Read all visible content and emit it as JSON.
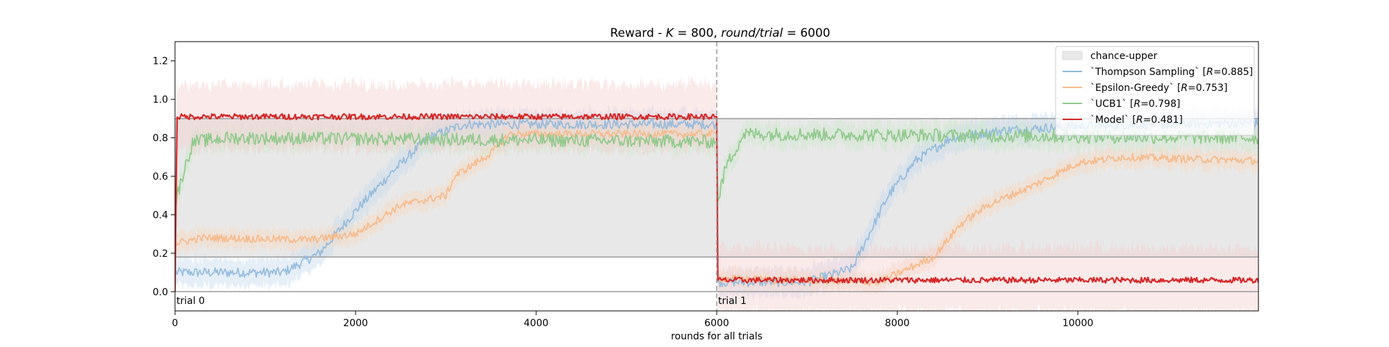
{
  "chart_data": {
    "type": "line",
    "title": "Reward - K = 800, round/trial = 6000",
    "title_parts": {
      "prefix": "Reward - ",
      "k_var": "K",
      "k_value": " = 800, ",
      "r_var": "round/trial",
      "r_value": " = 6000"
    },
    "xlabel": "rounds for all trials",
    "ylabel": "",
    "xlim": [
      0,
      12000
    ],
    "ylim": [
      -0.1,
      1.3
    ],
    "xticks": [
      0,
      2000,
      4000,
      6000,
      8000,
      10000
    ],
    "xtick_labels": [
      "0",
      "2000",
      "4000",
      "6000",
      "8000",
      "10000"
    ],
    "yticks": [
      0.0,
      0.2,
      0.4,
      0.6,
      0.8,
      1.0,
      1.2
    ],
    "ytick_labels": [
      "0.0",
      "0.2",
      "0.4",
      "0.6",
      "0.8",
      "1.0",
      "1.2"
    ],
    "grid": false,
    "legend_position": "top-right",
    "trial_boundary": 6000,
    "trial_labels": [
      {
        "x": 0,
        "text": "trial 0"
      },
      {
        "x": 6000,
        "text": "trial 1"
      }
    ],
    "chance_band": {
      "name": "chance-upper",
      "color": "#e8e8e8",
      "segments": [
        {
          "x0": 0,
          "x1": 6000,
          "lower": 0.18,
          "upper": 0.9
        },
        {
          "x0": 6000,
          "x1": 12000,
          "lower": 0.18,
          "upper": 0.9
        }
      ]
    },
    "zero_line": 0.0,
    "series": [
      {
        "name": "`Thompson Sampling` [R=0.885]",
        "legend_main": "`Thompson Sampling` [",
        "legend_var": "R",
        "legend_value": "=0.885]",
        "color": "#8fb8db",
        "band_color": "#c7dcee",
        "opacity": 0.9,
        "band_width": 0.07,
        "noise": 0.025,
        "points": [
          [
            0,
            0.1
          ],
          [
            1200,
            0.1
          ],
          [
            1600,
            0.2
          ],
          [
            2000,
            0.42
          ],
          [
            2400,
            0.62
          ],
          [
            2800,
            0.8
          ],
          [
            3200,
            0.87
          ],
          [
            3600,
            0.87
          ],
          [
            4000,
            0.87
          ],
          [
            5000,
            0.87
          ],
          [
            6000,
            0.87
          ],
          [
            6001,
            0.05
          ],
          [
            7000,
            0.05
          ],
          [
            7500,
            0.12
          ],
          [
            7900,
            0.5
          ],
          [
            8200,
            0.68
          ],
          [
            8600,
            0.8
          ],
          [
            9200,
            0.84
          ],
          [
            10000,
            0.86
          ],
          [
            11000,
            0.87
          ],
          [
            12000,
            0.88
          ]
        ]
      },
      {
        "name": "`Epsilon-Greedy` [R=0.753]",
        "legend_main": "`Epsilon-Greedy` [",
        "legend_var": "R",
        "legend_value": "=0.753]",
        "color": "#f5b98a",
        "band_color": "#f9d9bf",
        "opacity": 0.95,
        "band_width": 0.05,
        "noise": 0.02,
        "points": [
          [
            0,
            0.25
          ],
          [
            300,
            0.28
          ],
          [
            1500,
            0.27
          ],
          [
            2000,
            0.3
          ],
          [
            2500,
            0.45
          ],
          [
            3000,
            0.5
          ],
          [
            3100,
            0.6
          ],
          [
            3500,
            0.72
          ],
          [
            3700,
            0.82
          ],
          [
            4500,
            0.82
          ],
          [
            6000,
            0.82
          ],
          [
            6001,
            0.07
          ],
          [
            7800,
            0.05
          ],
          [
            8400,
            0.18
          ],
          [
            8700,
            0.35
          ],
          [
            9000,
            0.45
          ],
          [
            9500,
            0.55
          ],
          [
            10000,
            0.67
          ],
          [
            10500,
            0.7
          ],
          [
            12000,
            0.68
          ]
        ]
      },
      {
        "name": "`UCB1` [R=0.798]",
        "legend_main": "`UCB1` [",
        "legend_var": "R",
        "legend_value": "=0.798]",
        "color": "#8ec88a",
        "band_color": "#cfe8cc",
        "opacity": 0.95,
        "band_width": 0.06,
        "noise": 0.035,
        "points": [
          [
            0,
            0.45
          ],
          [
            80,
            0.6
          ],
          [
            200,
            0.78
          ],
          [
            600,
            0.8
          ],
          [
            6000,
            0.78
          ],
          [
            6001,
            0.45
          ],
          [
            6100,
            0.65
          ],
          [
            6300,
            0.82
          ],
          [
            12000,
            0.8
          ]
        ]
      },
      {
        "name": "`Model` [R=0.481]",
        "legend_main": "`Model` [",
        "legend_var": "R",
        "legend_value": "=0.481]",
        "color": "#d62728",
        "band_color": "#f5d0d0",
        "opacity": 1,
        "band_width": 0.17,
        "noise": 0.015,
        "points": [
          [
            0,
            0.0
          ],
          [
            20,
            0.91
          ],
          [
            6000,
            0.91
          ],
          [
            6001,
            0.06
          ],
          [
            12000,
            0.06
          ]
        ]
      }
    ]
  }
}
